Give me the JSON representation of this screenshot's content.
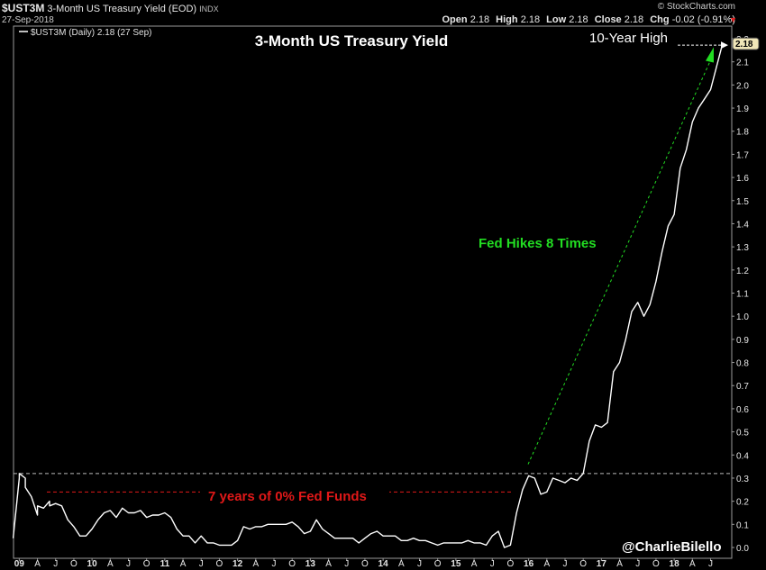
{
  "header": {
    "symbol": "$UST3M",
    "description": "3-Month US Treasury Yield (EOD)",
    "exchange": "INDX",
    "date": "27-Sep-2018",
    "brand": "© StockCharts.com",
    "open_label": "Open",
    "open": "2.18",
    "high_label": "High",
    "high": "2.18",
    "low_label": "Low",
    "low": "2.18",
    "close_label": "Close",
    "close": "2.18",
    "chg_label": "Chg",
    "chg": "-0.02 (-0.91%)",
    "chg_indicator": "▼",
    "down_color": "#e02020"
  },
  "legend": {
    "entry": "$UST3M (Daily) 2.18 (27 Sep)"
  },
  "chart_data": {
    "type": "line",
    "title": "3-Month US Treasury Yield",
    "xlabel": "",
    "ylabel": "",
    "ylim": [
      0.0,
      2.22
    ],
    "yticks": [
      "2.2",
      "2.1",
      "2.0",
      "1.9",
      "1.8",
      "1.7",
      "1.6",
      "1.5",
      "1.4",
      "1.3",
      "1.2",
      "1.1",
      "1.0",
      "0.9",
      "0.8",
      "0.7",
      "0.6",
      "0.5",
      "0.4",
      "0.3",
      "0.2",
      "0.1",
      "0.0"
    ],
    "xticks": [
      {
        "label": "09",
        "t": "2009-01",
        "bold": true
      },
      {
        "label": "A",
        "t": "2009-04"
      },
      {
        "label": "J",
        "t": "2009-07"
      },
      {
        "label": "O",
        "t": "2009-10"
      },
      {
        "label": "10",
        "t": "2010-01",
        "bold": true
      },
      {
        "label": "A",
        "t": "2010-04"
      },
      {
        "label": "J",
        "t": "2010-07"
      },
      {
        "label": "O",
        "t": "2010-10"
      },
      {
        "label": "11",
        "t": "2011-01",
        "bold": true
      },
      {
        "label": "A",
        "t": "2011-04"
      },
      {
        "label": "J",
        "t": "2011-07"
      },
      {
        "label": "O",
        "t": "2011-10"
      },
      {
        "label": "12",
        "t": "2012-01",
        "bold": true
      },
      {
        "label": "A",
        "t": "2012-04"
      },
      {
        "label": "J",
        "t": "2012-07"
      },
      {
        "label": "O",
        "t": "2012-10"
      },
      {
        "label": "13",
        "t": "2013-01",
        "bold": true
      },
      {
        "label": "A",
        "t": "2013-04"
      },
      {
        "label": "J",
        "t": "2013-07"
      },
      {
        "label": "O",
        "t": "2013-10"
      },
      {
        "label": "14",
        "t": "2014-01",
        "bold": true
      },
      {
        "label": "A",
        "t": "2014-04"
      },
      {
        "label": "J",
        "t": "2014-07"
      },
      {
        "label": "O",
        "t": "2014-10"
      },
      {
        "label": "15",
        "t": "2015-01",
        "bold": true
      },
      {
        "label": "A",
        "t": "2015-04"
      },
      {
        "label": "J",
        "t": "2015-07"
      },
      {
        "label": "O",
        "t": "2015-10"
      },
      {
        "label": "16",
        "t": "2016-01",
        "bold": true
      },
      {
        "label": "A",
        "t": "2016-04"
      },
      {
        "label": "J",
        "t": "2016-07"
      },
      {
        "label": "O",
        "t": "2016-10"
      },
      {
        "label": "17",
        "t": "2017-01",
        "bold": true
      },
      {
        "label": "A",
        "t": "2017-04"
      },
      {
        "label": "J",
        "t": "2017-07"
      },
      {
        "label": "O",
        "t": "2017-10"
      },
      {
        "label": "18",
        "t": "2018-01",
        "bold": true
      },
      {
        "label": "A",
        "t": "2018-04"
      },
      {
        "label": "J",
        "t": "2018-07"
      }
    ],
    "last_value_label": "2.18",
    "reference_line": 0.32,
    "series": [
      {
        "color": "#ffffff",
        "points": [
          [
            "2008-12",
            0.04
          ],
          [
            "2009-01",
            0.3
          ],
          [
            "2009-01",
            0.32
          ],
          [
            "2009-02",
            0.3
          ],
          [
            "2009-02",
            0.26
          ],
          [
            "2009-03",
            0.22
          ],
          [
            "2009-04",
            0.14
          ],
          [
            "2009-04",
            0.18
          ],
          [
            "2009-05",
            0.17
          ],
          [
            "2009-06",
            0.2
          ],
          [
            "2009-06",
            0.18
          ],
          [
            "2009-07",
            0.19
          ],
          [
            "2009-08",
            0.18
          ],
          [
            "2009-09",
            0.12
          ],
          [
            "2009-10",
            0.09
          ],
          [
            "2009-11",
            0.05
          ],
          [
            "2009-12",
            0.05
          ],
          [
            "2010-01",
            0.08
          ],
          [
            "2010-02",
            0.12
          ],
          [
            "2010-03",
            0.15
          ],
          [
            "2010-04",
            0.16
          ],
          [
            "2010-05",
            0.13
          ],
          [
            "2010-06",
            0.17
          ],
          [
            "2010-07",
            0.15
          ],
          [
            "2010-08",
            0.15
          ],
          [
            "2010-09",
            0.16
          ],
          [
            "2010-10",
            0.13
          ],
          [
            "2010-11",
            0.14
          ],
          [
            "2010-12",
            0.14
          ],
          [
            "2011-01",
            0.15
          ],
          [
            "2011-02",
            0.13
          ],
          [
            "2011-03",
            0.08
          ],
          [
            "2011-04",
            0.05
          ],
          [
            "2011-05",
            0.05
          ],
          [
            "2011-06",
            0.02
          ],
          [
            "2011-07",
            0.05
          ],
          [
            "2011-08",
            0.02
          ],
          [
            "2011-09",
            0.02
          ],
          [
            "2011-10",
            0.01
          ],
          [
            "2011-11",
            0.01
          ],
          [
            "2011-12",
            0.01
          ],
          [
            "2012-01",
            0.03
          ],
          [
            "2012-02",
            0.09
          ],
          [
            "2012-03",
            0.08
          ],
          [
            "2012-04",
            0.09
          ],
          [
            "2012-05",
            0.09
          ],
          [
            "2012-06",
            0.1
          ],
          [
            "2012-07",
            0.1
          ],
          [
            "2012-08",
            0.1
          ],
          [
            "2012-09",
            0.1
          ],
          [
            "2012-10",
            0.11
          ],
          [
            "2012-11",
            0.09
          ],
          [
            "2012-12",
            0.06
          ],
          [
            "2013-01",
            0.07
          ],
          [
            "2013-02",
            0.12
          ],
          [
            "2013-03",
            0.08
          ],
          [
            "2013-04",
            0.06
          ],
          [
            "2013-05",
            0.04
          ],
          [
            "2013-06",
            0.04
          ],
          [
            "2013-07",
            0.04
          ],
          [
            "2013-08",
            0.04
          ],
          [
            "2013-09",
            0.02
          ],
          [
            "2013-10",
            0.04
          ],
          [
            "2013-11",
            0.06
          ],
          [
            "2013-12",
            0.07
          ],
          [
            "2014-01",
            0.05
          ],
          [
            "2014-02",
            0.05
          ],
          [
            "2014-03",
            0.05
          ],
          [
            "2014-04",
            0.03
          ],
          [
            "2014-05",
            0.03
          ],
          [
            "2014-06",
            0.04
          ],
          [
            "2014-07",
            0.03
          ],
          [
            "2014-08",
            0.03
          ],
          [
            "2014-09",
            0.02
          ],
          [
            "2014-10",
            0.01
          ],
          [
            "2014-11",
            0.02
          ],
          [
            "2014-12",
            0.02
          ],
          [
            "2015-01",
            0.02
          ],
          [
            "2015-02",
            0.02
          ],
          [
            "2015-03",
            0.03
          ],
          [
            "2015-04",
            0.02
          ],
          [
            "2015-05",
            0.02
          ],
          [
            "2015-06",
            0.01
          ],
          [
            "2015-07",
            0.05
          ],
          [
            "2015-08",
            0.07
          ],
          [
            "2015-09",
            0.0
          ],
          [
            "2015-10",
            0.01
          ],
          [
            "2015-11",
            0.15
          ],
          [
            "2015-12",
            0.25
          ],
          [
            "2016-01",
            0.31
          ],
          [
            "2016-02",
            0.3
          ],
          [
            "2016-03",
            0.23
          ],
          [
            "2016-04",
            0.24
          ],
          [
            "2016-05",
            0.3
          ],
          [
            "2016-06",
            0.29
          ],
          [
            "2016-07",
            0.28
          ],
          [
            "2016-08",
            0.3
          ],
          [
            "2016-09",
            0.29
          ],
          [
            "2016-10",
            0.32
          ],
          [
            "2016-11",
            0.46
          ],
          [
            "2016-12",
            0.53
          ],
          [
            "2017-01",
            0.52
          ],
          [
            "2017-02",
            0.54
          ],
          [
            "2017-03",
            0.76
          ],
          [
            "2017-04",
            0.8
          ],
          [
            "2017-05",
            0.9
          ],
          [
            "2017-06",
            1.02
          ],
          [
            "2017-07",
            1.06
          ],
          [
            "2017-08",
            1.0
          ],
          [
            "2017-09",
            1.05
          ],
          [
            "2017-10",
            1.15
          ],
          [
            "2017-11",
            1.28
          ],
          [
            "2017-12",
            1.39
          ],
          [
            "2018-01",
            1.44
          ],
          [
            "2018-02",
            1.64
          ],
          [
            "2018-03",
            1.72
          ],
          [
            "2018-04",
            1.84
          ],
          [
            "2018-05",
            1.9
          ],
          [
            "2018-06",
            1.94
          ],
          [
            "2018-07",
            1.98
          ],
          [
            "2018-08",
            2.08
          ],
          [
            "2018-09",
            2.18
          ]
        ]
      }
    ],
    "annotations": [
      {
        "text": "10-Year High",
        "color": "#ffffff"
      },
      {
        "text": "Fed Hikes 8 Times",
        "color": "#22dd22"
      },
      {
        "text": "7 years of 0% Fed Funds",
        "color": "#e01818"
      }
    ],
    "credit": "@CharlieBilello",
    "grid": false,
    "legend_position": "top-left"
  }
}
